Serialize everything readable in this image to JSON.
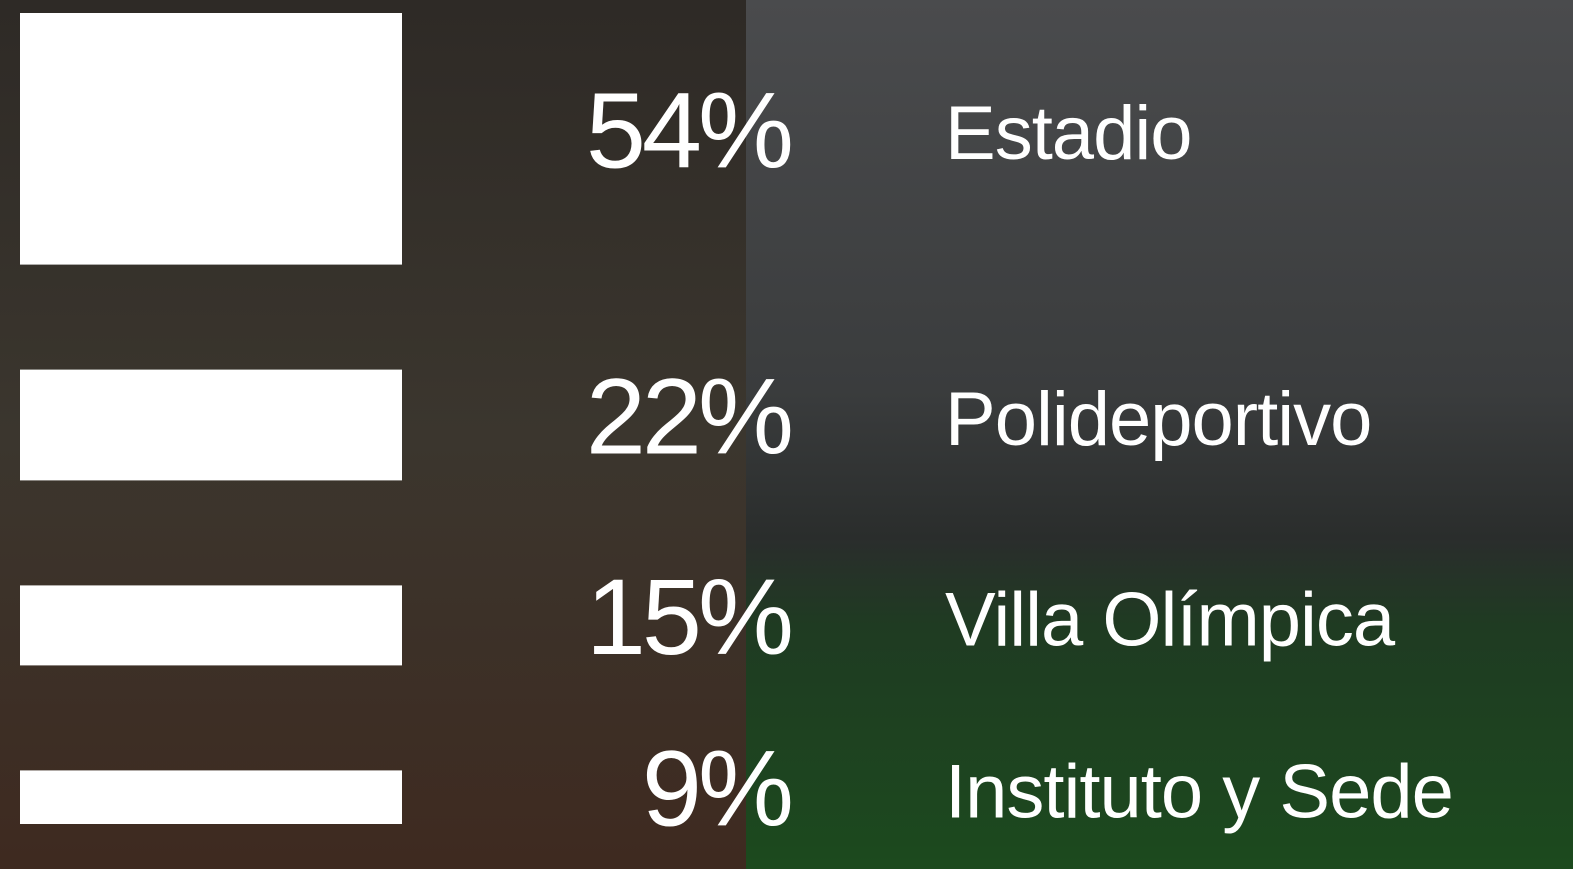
{
  "chart_data": {
    "type": "bar",
    "categories": [
      "Estadio",
      "Polideportivo",
      "Villa Olímpica",
      "Instituto y Sede"
    ],
    "values": [
      54,
      22,
      15,
      9
    ],
    "value_labels": [
      "54%",
      "22%",
      "15%",
      "9%"
    ],
    "color": "#ffffff"
  }
}
